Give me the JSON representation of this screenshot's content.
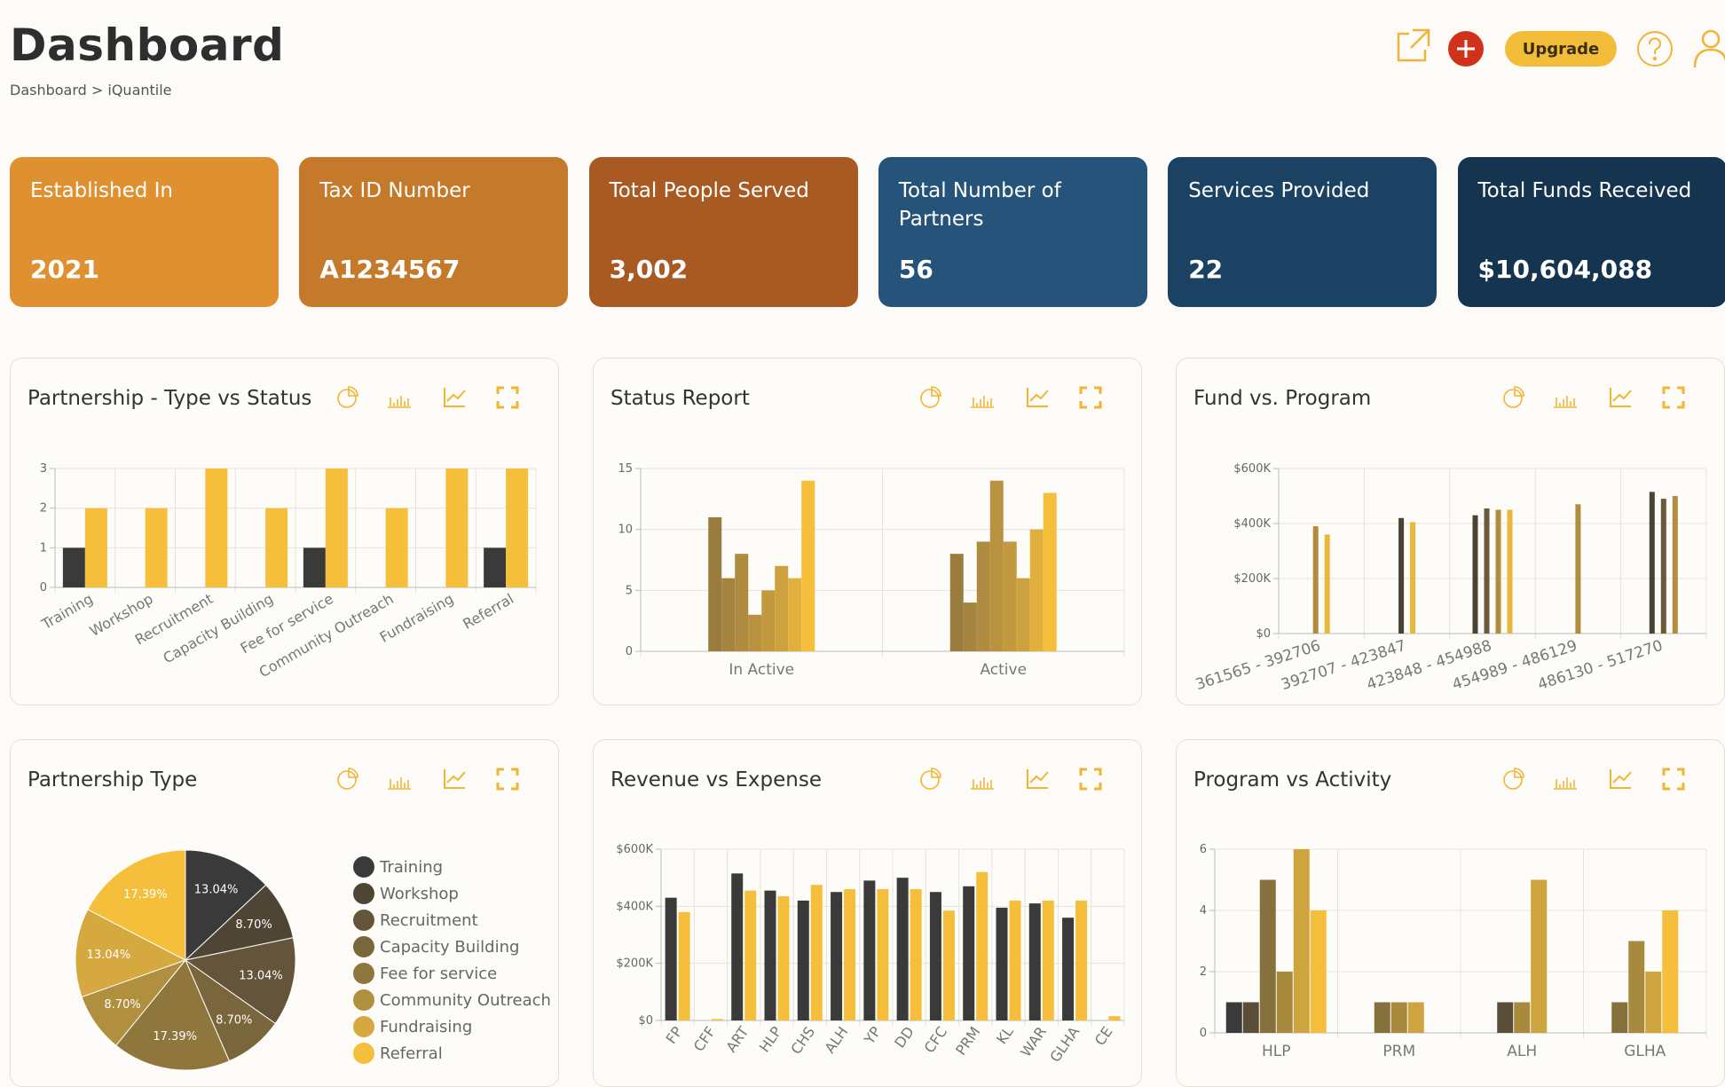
{
  "header": {
    "title": "Dashboard",
    "breadcrumb": "Dashboard > iQuantile",
    "upgrade": "Upgrade"
  },
  "cards": [
    {
      "label": "Established In",
      "value": "2021"
    },
    {
      "label": "Tax ID Number",
      "value": "A1234567"
    },
    {
      "label": "Total People Served",
      "value": "3,002"
    },
    {
      "label": "Total Number of Partners",
      "value": "56"
    },
    {
      "label": "Services Provided",
      "value": "22"
    },
    {
      "label": "Total Funds Received",
      "value": "$10,604,088"
    }
  ],
  "chart_data": [
    {
      "type": "bar",
      "title": "Partnership - Type vs Status",
      "categories": [
        "Training",
        "Workshop",
        "Recruitment",
        "Capacity Building",
        "Fee for service",
        "Community Outreach",
        "Fundraising",
        "Referral"
      ],
      "series": [
        {
          "color": "#3a3a3a",
          "values": [
            1,
            0,
            0,
            0,
            1,
            0,
            0,
            1
          ]
        },
        {
          "color": "#f5bf3c",
          "values": [
            2,
            2,
            3,
            2,
            3,
            2,
            3,
            3
          ]
        }
      ],
      "ylim": [
        0,
        3
      ],
      "yticks": [
        0,
        1,
        2,
        3
      ],
      "grid": true
    },
    {
      "type": "bar",
      "title": "Status Report",
      "categories": [
        "In Active",
        "Active"
      ],
      "series": [
        {
          "color": "#9a7d3e",
          "values": [
            11,
            8
          ]
        },
        {
          "color": "#a4843e",
          "values": [
            6,
            4
          ]
        },
        {
          "color": "#ae8b3e",
          "values": [
            8,
            9
          ]
        },
        {
          "color": "#b8923e",
          "values": [
            3,
            14
          ]
        },
        {
          "color": "#c2993e",
          "values": [
            5,
            9
          ]
        },
        {
          "color": "#cca13e",
          "values": [
            7,
            6
          ]
        },
        {
          "color": "#e0b03d",
          "values": [
            6,
            10
          ]
        },
        {
          "color": "#f5bf3c",
          "values": [
            14,
            13
          ]
        }
      ],
      "ylim": [
        0,
        15
      ],
      "yticks": [
        0,
        5,
        10,
        15
      ],
      "grid": true
    },
    {
      "type": "bar",
      "title": "Fund vs. Program",
      "categories": [
        "361565 - 392706",
        "392707 - 423847",
        "423848 - 454988",
        "454989 - 486129",
        "486130 - 517270"
      ],
      "series": [
        {
          "color": "#4a4232",
          "values": [
            null,
            420000,
            430000,
            null,
            515000
          ]
        },
        {
          "color": "#6b5a3a",
          "values": [
            null,
            null,
            455000,
            null,
            490000
          ]
        },
        {
          "color": "#b08d3e",
          "values": [
            390000,
            null,
            450000,
            470000,
            500000
          ]
        },
        {
          "color": "#e8b83a",
          "values": [
            360000,
            405000,
            450000,
            null,
            null
          ]
        }
      ],
      "ylim": [
        0,
        600000
      ],
      "yticks": [
        {
          "value": 0,
          "label": "$0"
        },
        {
          "value": 200000,
          "label": "$200K"
        },
        {
          "value": 400000,
          "label": "$400K"
        },
        {
          "value": 600000,
          "label": "$600K"
        }
      ],
      "grid": true
    },
    {
      "type": "pie",
      "title": "Partnership Type",
      "categories": [
        "Training",
        "Workshop",
        "Recruitment",
        "Capacity Building",
        "Fee for service",
        "Community Outreach",
        "Fundraising",
        "Referral"
      ],
      "values": [
        13.04,
        8.7,
        13.04,
        8.7,
        17.39,
        8.7,
        13.04,
        17.39
      ],
      "value_labels": [
        "13.04%",
        "8.70%",
        "13.04%",
        "8.70%",
        "17.39%",
        "8.70%",
        "13.04%",
        "17.39%"
      ],
      "colors": [
        "#3a3a3a",
        "#4f4535",
        "#64553a",
        "#7a663c",
        "#8f763d",
        "#b0903f",
        "#d6a940",
        "#f5bf3c"
      ]
    },
    {
      "type": "bar",
      "title": "Revenue vs Expense",
      "categories": [
        "FP",
        "CFF",
        "ART",
        "HLP",
        "CHS",
        "ALH",
        "YP",
        "DD",
        "CFC",
        "PRM",
        "KL",
        "WAR",
        "GLHA",
        "CE"
      ],
      "series": [
        {
          "color": "#3a3a3a",
          "values": [
            430000,
            0,
            515000,
            455000,
            420000,
            450000,
            490000,
            500000,
            450000,
            470000,
            395000,
            410000,
            360000,
            0
          ]
        },
        {
          "color": "#f5bf3c",
          "values": [
            380000,
            5000,
            455000,
            435000,
            475000,
            460000,
            460000,
            460000,
            385000,
            520000,
            420000,
            420000,
            420000,
            15000
          ]
        }
      ],
      "ylim": [
        0,
        600000
      ],
      "yticks": [
        {
          "value": 0,
          "label": "$0"
        },
        {
          "value": 200000,
          "label": "$200K"
        },
        {
          "value": 400000,
          "label": "$400K"
        },
        {
          "value": 600000,
          "label": "$600K"
        }
      ],
      "grid": true
    },
    {
      "type": "bar",
      "title": "Program vs Activity",
      "categories": [
        "HLP",
        "PRM",
        "ALH",
        "GLHA"
      ],
      "series": [
        {
          "color": "#3a3a3a",
          "values": [
            1,
            null,
            null,
            null
          ]
        },
        {
          "color": "#5a4e38",
          "values": [
            1,
            null,
            1,
            null
          ]
        },
        {
          "color": "#86703c",
          "values": [
            5,
            1,
            null,
            1
          ]
        },
        {
          "color": "#a88a3e",
          "values": [
            2,
            1,
            1,
            3
          ]
        },
        {
          "color": "#cda43e",
          "values": [
            6,
            1,
            5,
            2
          ]
        },
        {
          "color": "#f5bf3c",
          "values": [
            4,
            null,
            null,
            4
          ]
        }
      ],
      "ylim": [
        0,
        6
      ],
      "yticks": [
        0,
        2,
        4,
        6
      ],
      "grid": true
    }
  ]
}
